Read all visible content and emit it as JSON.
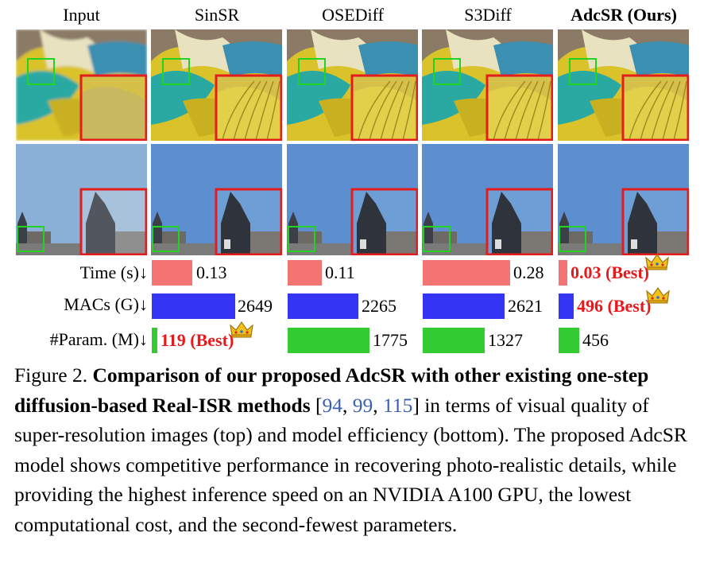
{
  "columns": [
    "Input",
    "SinSR",
    "OSEDiff",
    "S3Diff",
    "AdcSR (Ours)"
  ],
  "rows": [
    "parrot-feathers",
    "tower-sky"
  ],
  "metrics": [
    {
      "label": "Time (s)↓",
      "values": [
        "",
        "0.13",
        "0.11",
        "0.28",
        "0.03 (Best)"
      ],
      "numbers": [
        null,
        0.13,
        0.11,
        0.28,
        0.03
      ],
      "best_index": 4
    },
    {
      "label": "MACs (G)↓",
      "values": [
        "",
        "2649",
        "2265",
        "2621",
        "496 (Best)"
      ],
      "numbers": [
        null,
        2649,
        2265,
        2621,
        496
      ],
      "best_index": 4
    },
    {
      "label": "#Param. (M)↓",
      "values": [
        "",
        "119 (Best)",
        "1775",
        "1327",
        "456"
      ],
      "numbers": [
        null,
        119,
        1775,
        1327,
        456
      ],
      "best_index": 1
    }
  ],
  "colors": {
    "time": "#f47373",
    "macs": "#3535f5",
    "param": "#33cc33",
    "best": "#e8191b",
    "zoom_box": "#e51c1c",
    "crop_box": "#22d322"
  },
  "caption": {
    "prefix": "Figure 2. ",
    "bold": "Comparison of our proposed AdcSR with other existing one-step diffusion-based Real-ISR methods",
    "open": " [",
    "cite1": "94",
    "sep1": ", ",
    "cite2": "99",
    "sep2": ", ",
    "cite3": "115",
    "close": "]",
    "rest": " in terms of visual quality of super-resolution images (top) and model efficiency (bottom). The proposed AdcSR model shows competitive performance in recovering photo-realistic details, while providing the highest inference speed on an NVIDIA A100 GPU, the lowest computational cost, and the second-fewest parameters."
  }
}
